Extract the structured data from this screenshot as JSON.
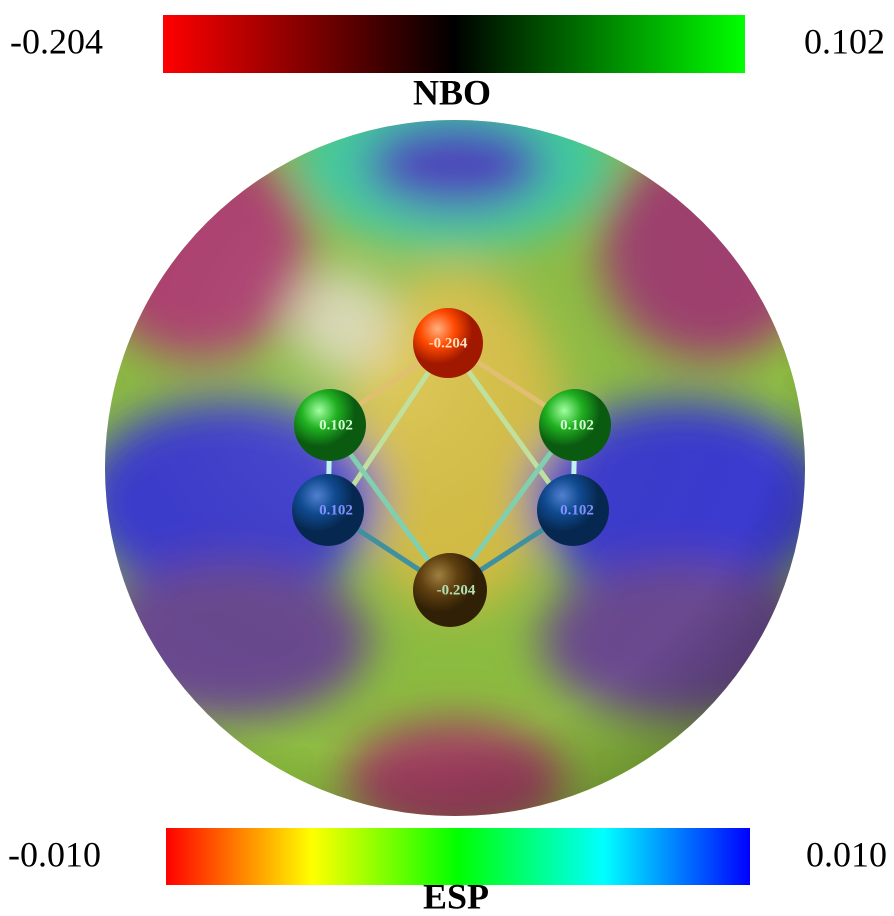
{
  "nbo_bar": {
    "min_label": "-0.204",
    "max_label": "0.102",
    "title": "NBO"
  },
  "esp_bar": {
    "min_label": "-0.010",
    "max_label": "0.010",
    "title": "ESP"
  },
  "atoms": [
    {
      "label": "-0.204"
    },
    {
      "label": "0.102"
    },
    {
      "label": "0.102"
    },
    {
      "label": "0.102"
    },
    {
      "label": "0.102"
    },
    {
      "label": "-0.204"
    }
  ]
}
